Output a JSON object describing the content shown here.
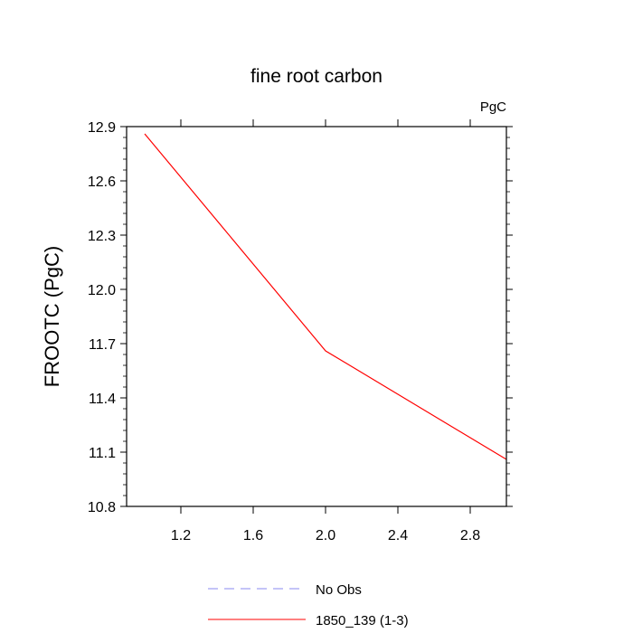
{
  "chart_data": {
    "type": "line",
    "title": "fine root carbon",
    "units": "PgC",
    "ylabel": "FROOTC  (PgC)",
    "xlabel": "",
    "xlim": [
      0.9,
      3.0
    ],
    "ylim": [
      10.8,
      12.9
    ],
    "xticks": [
      1.2,
      1.6,
      2.0,
      2.4,
      2.8
    ],
    "xtick_labels": [
      "1.2",
      "1.6",
      "2.0",
      "2.4",
      "2.8"
    ],
    "yticks": [
      10.8,
      11.1,
      11.4,
      11.7,
      12.0,
      12.3,
      12.6,
      12.9
    ],
    "ytick_labels": [
      "10.8",
      "11.1",
      "11.4",
      "11.7",
      "12.0",
      "12.3",
      "12.6",
      "12.9"
    ],
    "grid": false,
    "legend_position": "bottom",
    "series": [
      {
        "name": "1850_139 (1-3)",
        "color": "#ff0000",
        "dash": "solid",
        "x": [
          1.0,
          2.0,
          3.0
        ],
        "y": [
          12.86,
          11.66,
          11.06
        ]
      }
    ],
    "legend": [
      {
        "name": "No Obs",
        "color": "#8a8af0",
        "dash": "dashed"
      },
      {
        "name": "1850_139 (1-3)",
        "color": "#ff0000",
        "dash": "solid"
      }
    ]
  }
}
